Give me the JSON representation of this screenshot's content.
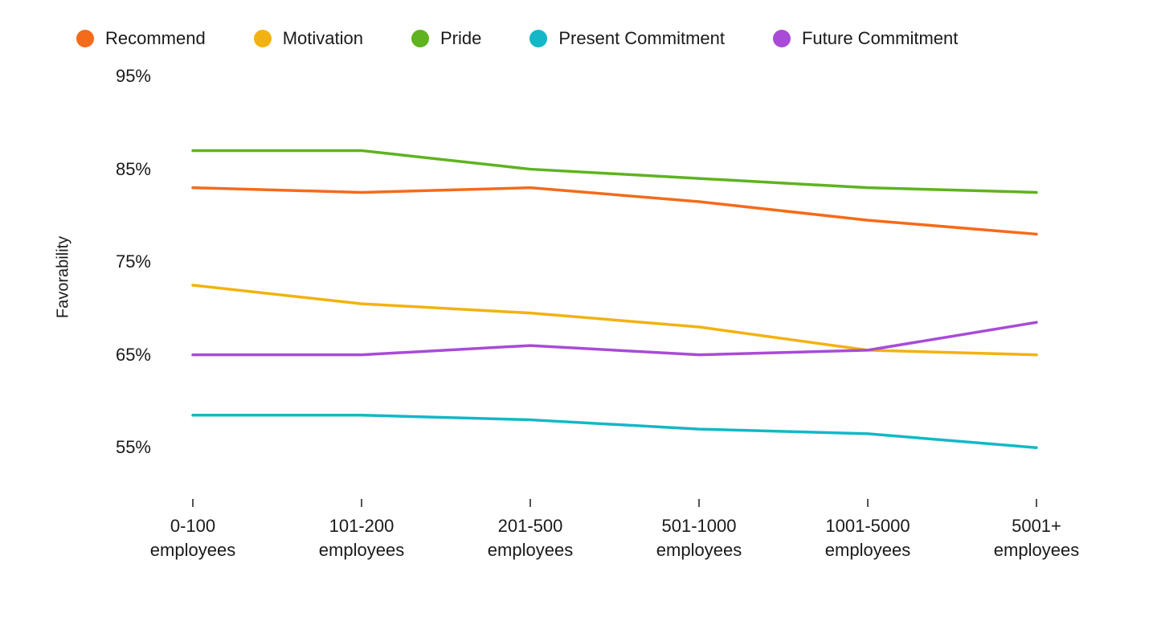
{
  "chart": {
    "type": "line",
    "background_color": "#ffffff",
    "y_axis": {
      "title": "Favorability",
      "min": 50,
      "max": 95,
      "ticks": [
        55,
        65,
        75,
        85,
        95
      ],
      "tick_suffix": "%",
      "label_fontsize": 22,
      "title_fontsize": 20
    },
    "x_axis": {
      "categories": [
        "0-100 employees",
        "101-200 employees",
        "201-500 employees",
        "501-1000 employees",
        "1001-5000 employees",
        "5001+ employees"
      ],
      "label_fontsize": 22,
      "tick_length": 10,
      "tick_color": "#1a1a1a"
    },
    "legend": {
      "position": "top-left",
      "dot_size": 22,
      "gap": 60,
      "fontsize": 22
    },
    "line_width": 3.5,
    "series": [
      {
        "name": "Recommend",
        "color": "#f46b1b",
        "values": [
          83.0,
          82.5,
          83.0,
          81.5,
          79.5,
          78.0
        ]
      },
      {
        "name": "Motivation",
        "color": "#f2b20f",
        "values": [
          72.5,
          70.5,
          69.5,
          68.0,
          65.5,
          65.0
        ]
      },
      {
        "name": "Pride",
        "color": "#5eb31f",
        "values": [
          87.0,
          87.0,
          85.0,
          84.0,
          83.0,
          82.5
        ]
      },
      {
        "name": "Present Commitment",
        "color": "#12b8c6",
        "values": [
          58.5,
          58.5,
          58.0,
          57.0,
          56.5,
          55.0
        ]
      },
      {
        "name": "Future Commitment",
        "color": "#a94bd6",
        "values": [
          65.0,
          65.0,
          66.0,
          65.0,
          65.5,
          68.5
        ]
      }
    ]
  }
}
